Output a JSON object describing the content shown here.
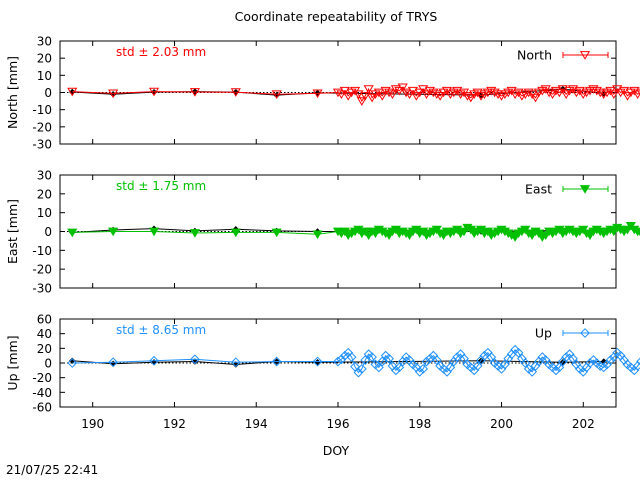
{
  "chart_data": {
    "type": "line",
    "title": "Coordinate repeatability of TRYS",
    "xlabel": "DOY",
    "xlim": [
      189.2,
      202.8
    ],
    "xticks": [
      190,
      192,
      194,
      196,
      198,
      200,
      202
    ],
    "timestamp": "21/07/25 22:41",
    "panels": [
      {
        "component": "North",
        "ylabel": "North [mm]",
        "ylim": [
          -30,
          30
        ],
        "yticks": [
          -30,
          -20,
          -10,
          0,
          10,
          20,
          30
        ],
        "std_label": "std ± 2.03 mm",
        "color": "#ff0000",
        "marker": "triangle-down-open",
        "series_name": "North",
        "daily_x": [
          189.5,
          190.5,
          191.5,
          192.5,
          193.5,
          194.5,
          195.5
        ],
        "daily_y": [
          0.5,
          -0.5,
          0.5,
          0.3,
          0.2,
          -1.0,
          -0.5
        ],
        "ref_x": [
          189.5,
          190.5,
          191.5,
          192.5,
          193.5,
          194.5,
          195.5,
          199.5,
          201.5,
          202.5
        ],
        "ref_y": [
          0.3,
          -1.0,
          0.2,
          0.5,
          0.2,
          -1.5,
          -0.2,
          -1.5,
          2.0,
          -0.5
        ],
        "hourly_start": 196.0,
        "hourly_step": 0.0833,
        "hourly_y": [
          0,
          -1,
          1,
          -2,
          0,
          1,
          -1,
          -5,
          -2,
          2,
          -3,
          -1,
          0,
          -2,
          1,
          0,
          -1,
          2,
          1,
          3,
          0,
          -1,
          1,
          -2,
          0,
          2,
          -1,
          1,
          0,
          -1,
          -2,
          0,
          1,
          -1,
          0,
          1,
          -1,
          0,
          -2,
          -3,
          -1,
          0,
          -2,
          -1,
          0,
          1,
          0,
          -1,
          -2,
          -1,
          0,
          1,
          -1,
          0,
          -2,
          -1,
          0,
          -1,
          -3,
          0,
          1,
          2,
          0,
          -1,
          1,
          0,
          2,
          -1,
          1,
          2,
          0,
          1,
          -1,
          0,
          1,
          2,
          1,
          0,
          -1,
          0,
          1,
          -1,
          2,
          0,
          1,
          -2,
          0,
          1,
          -1,
          0,
          1,
          2,
          3,
          1,
          -1,
          0,
          1,
          2,
          -1,
          -2,
          1,
          2,
          0,
          1,
          -2,
          -3,
          -1,
          -3,
          -5
        ]
      },
      {
        "component": "East",
        "ylabel": "East [mm]",
        "ylim": [
          -30,
          30
        ],
        "yticks": [
          -30,
          -20,
          -10,
          0,
          10,
          20,
          30
        ],
        "std_label": "std ± 1.75 mm",
        "color": "#00c000",
        "marker": "triangle-down-filled",
        "series_name": "East",
        "daily_x": [
          189.5,
          190.5,
          191.5,
          192.5,
          193.5,
          194.5,
          195.5
        ],
        "daily_y": [
          -0.5,
          0.0,
          0.0,
          -0.8,
          -0.5,
          -0.5,
          -1.5
        ],
        "ref_x": [
          189.5,
          190.5,
          191.5,
          192.5,
          193.5,
          194.5,
          195.5,
          199.5,
          201.5,
          202.5
        ],
        "ref_y": [
          -0.5,
          0.8,
          1.5,
          0.3,
          1.2,
          0.3,
          0.0,
          0.0,
          0.5,
          0.0
        ],
        "hourly_start": 196.0,
        "hourly_step": 0.0833,
        "hourly_y": [
          0,
          -1,
          0,
          -2,
          -1,
          0,
          1,
          -1,
          0,
          -2,
          0,
          -1,
          1,
          0,
          -1,
          -2,
          0,
          1,
          -1,
          0,
          -1,
          -2,
          0,
          1,
          -1,
          0,
          -2,
          -1,
          0,
          1,
          -1,
          -2,
          0,
          -1,
          0,
          1,
          -1,
          0,
          2,
          1,
          -1,
          0,
          1,
          -1,
          0,
          -2,
          -1,
          0,
          1,
          0,
          -1,
          -2,
          -3,
          -1,
          0,
          1,
          -1,
          -2,
          0,
          -1,
          -3,
          -2,
          0,
          -1,
          0,
          1,
          -1,
          0,
          1,
          0,
          -1,
          0,
          1,
          -1,
          -2,
          0,
          1,
          0,
          -1,
          0,
          1,
          0,
          2,
          1,
          0,
          1,
          3,
          1,
          0,
          -1,
          -2,
          -1,
          0,
          -2,
          -3,
          -4,
          -1,
          0,
          -1,
          1,
          0,
          -1,
          -2,
          0,
          1,
          0,
          -1,
          -3,
          -5,
          0
        ]
      },
      {
        "component": "Up",
        "ylabel": "Up [mm]",
        "ylim": [
          -60,
          60
        ],
        "yticks": [
          -60,
          -40,
          -20,
          0,
          20,
          40,
          60
        ],
        "std_label": "std ± 8.65 mm",
        "color": "#1e90ff",
        "marker": "diamond-open",
        "series_name": "Up",
        "daily_x": [
          189.5,
          190.5,
          191.5,
          192.5,
          193.5,
          194.5,
          195.5
        ],
        "daily_y": [
          0,
          1,
          3,
          5,
          1,
          2,
          2
        ],
        "ref_x": [
          189.5,
          190.5,
          191.5,
          192.5,
          193.5,
          194.5,
          195.5,
          199.5,
          201.5,
          202.5
        ],
        "ref_y": [
          3,
          -1,
          1,
          2,
          -2,
          2,
          1,
          3,
          1,
          2
        ],
        "hourly_start": 196.0,
        "hourly_step": 0.0833,
        "hourly_y": [
          2,
          5,
          10,
          14,
          8,
          -5,
          -13,
          -8,
          4,
          12,
          8,
          -2,
          -6,
          2,
          10,
          6,
          -4,
          -10,
          -6,
          2,
          8,
          4,
          -2,
          -6,
          -12,
          -8,
          2,
          6,
          10,
          4,
          -4,
          -8,
          -12,
          -6,
          2,
          8,
          12,
          6,
          -2,
          -6,
          -10,
          -4,
          4,
          10,
          14,
          8,
          0,
          -4,
          -8,
          -2,
          6,
          12,
          18,
          14,
          6,
          0,
          -8,
          -12,
          -4,
          2,
          8,
          4,
          -2,
          -6,
          -10,
          -6,
          2,
          8,
          12,
          6,
          -2,
          -8,
          -12,
          -6,
          0,
          4,
          0,
          -4,
          -6,
          -2,
          4,
          8,
          14,
          10,
          4,
          -2,
          -6,
          -10,
          -4,
          2,
          8,
          10,
          4,
          -2,
          -6,
          2,
          6,
          0,
          -4,
          -8,
          -14,
          -16,
          -10,
          -2,
          6,
          12,
          16,
          10,
          -4,
          -10
        ]
      }
    ]
  }
}
